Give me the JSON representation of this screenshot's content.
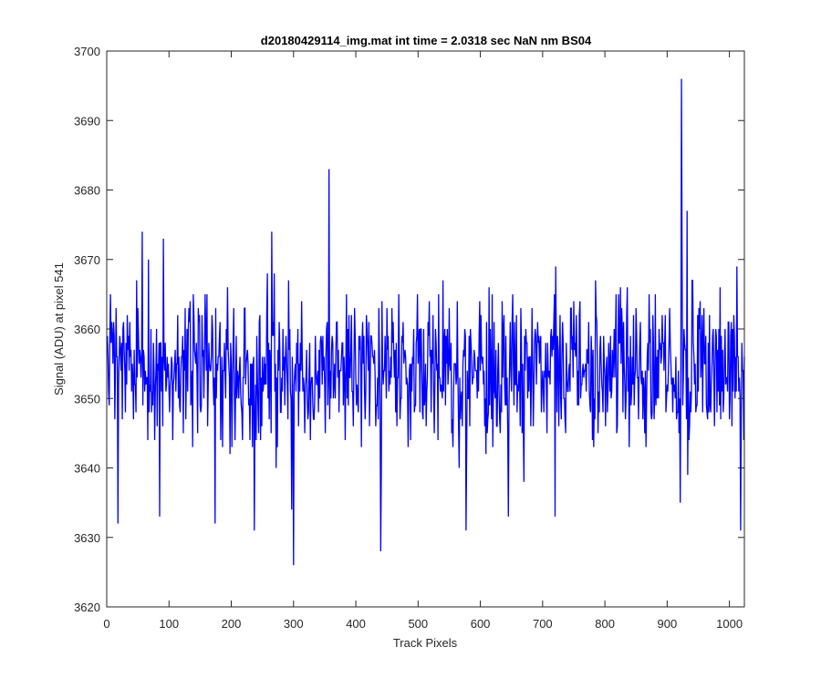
{
  "chart_data": {
    "type": "line",
    "title": "d20180429114_img.mat int time = 2.0318 sec  NaN nm BS04",
    "xlabel": "Track Pixels",
    "ylabel": "Signal (ADU) at pixel 541",
    "xlim": [
      0,
      1024
    ],
    "ylim": [
      3620,
      3700
    ],
    "xticks": [
      0,
      100,
      200,
      300,
      400,
      500,
      600,
      700,
      800,
      900,
      1000
    ],
    "xtick_labels": [
      "0",
      "100",
      "200",
      "300",
      "400",
      "500",
      "600",
      "700",
      "800",
      "900",
      "1000"
    ],
    "yticks": [
      3620,
      3630,
      3640,
      3650,
      3660,
      3670,
      3680,
      3690,
      3700
    ],
    "ytick_labels": [
      "3620",
      "3630",
      "3640",
      "3650",
      "3660",
      "3670",
      "3680",
      "3690",
      "3700"
    ],
    "grid": false,
    "box": true,
    "line_color": "#0000ff",
    "axis_color": "#262626",
    "series": [
      {
        "x_start": 1,
        "x_step": 1,
        "n_points": 1024,
        "mean": 3654,
        "std": 5.5,
        "min": 3626,
        "max": 3696,
        "features": [
          {
            "x": 18,
            "y": 3632
          },
          {
            "x": 57,
            "y": 3674
          },
          {
            "x": 85,
            "y": 3633
          },
          {
            "x": 91,
            "y": 3673
          },
          {
            "x": 174,
            "y": 3632
          },
          {
            "x": 237,
            "y": 3631
          },
          {
            "x": 265,
            "y": 3674
          },
          {
            "x": 297,
            "y": 3634
          },
          {
            "x": 300,
            "y": 3626
          },
          {
            "x": 357,
            "y": 3683
          },
          {
            "x": 440,
            "y": 3628
          },
          {
            "x": 577,
            "y": 3631
          },
          {
            "x": 645,
            "y": 3633
          },
          {
            "x": 720,
            "y": 3633
          },
          {
            "x": 921,
            "y": 3635
          },
          {
            "x": 923,
            "y": 3696
          },
          {
            "x": 932,
            "y": 3677
          },
          {
            "x": 1018,
            "y": 3631
          }
        ]
      }
    ]
  }
}
